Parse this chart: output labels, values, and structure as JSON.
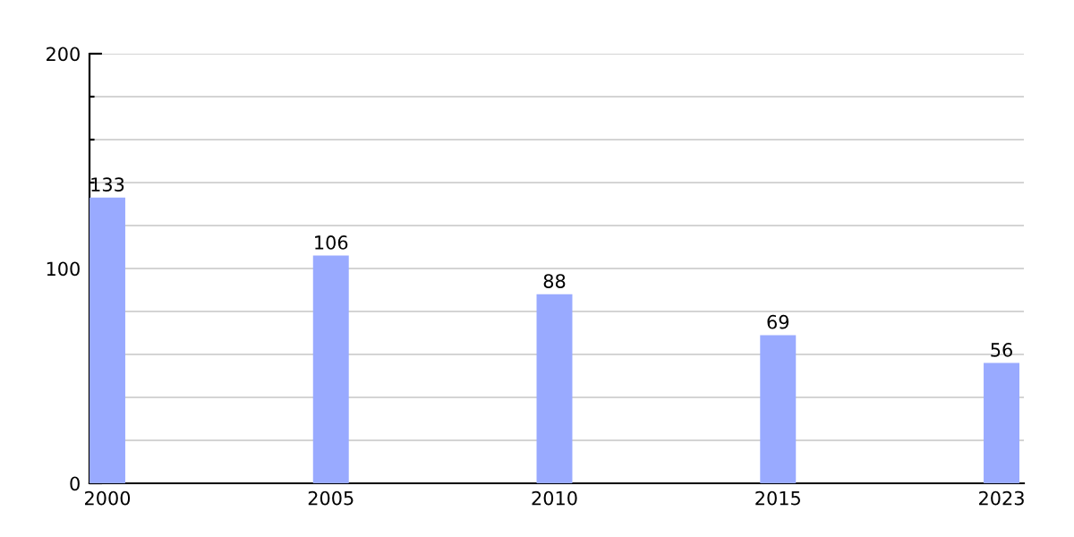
{
  "chart_data": {
    "type": "bar",
    "categories": [
      "2000",
      "2005",
      "2010",
      "2015",
      "2023"
    ],
    "values": [
      133,
      106,
      88,
      69,
      56
    ],
    "color": "#99aaff",
    "data_labels": true,
    "ylim": [
      0,
      200
    ],
    "yticks": [
      0,
      {
        "value": 20,
        "label": null
      },
      {
        "value": 40,
        "label": null
      },
      {
        "value": 60,
        "label": null
      },
      {
        "value": 80,
        "label": null
      },
      100,
      {
        "value": 120,
        "label": null
      },
      {
        "value": 140,
        "label": null
      },
      {
        "value": 160,
        "label": null
      },
      {
        "value": 180,
        "label": null
      },
      200
    ],
    "grid": "y"
  }
}
